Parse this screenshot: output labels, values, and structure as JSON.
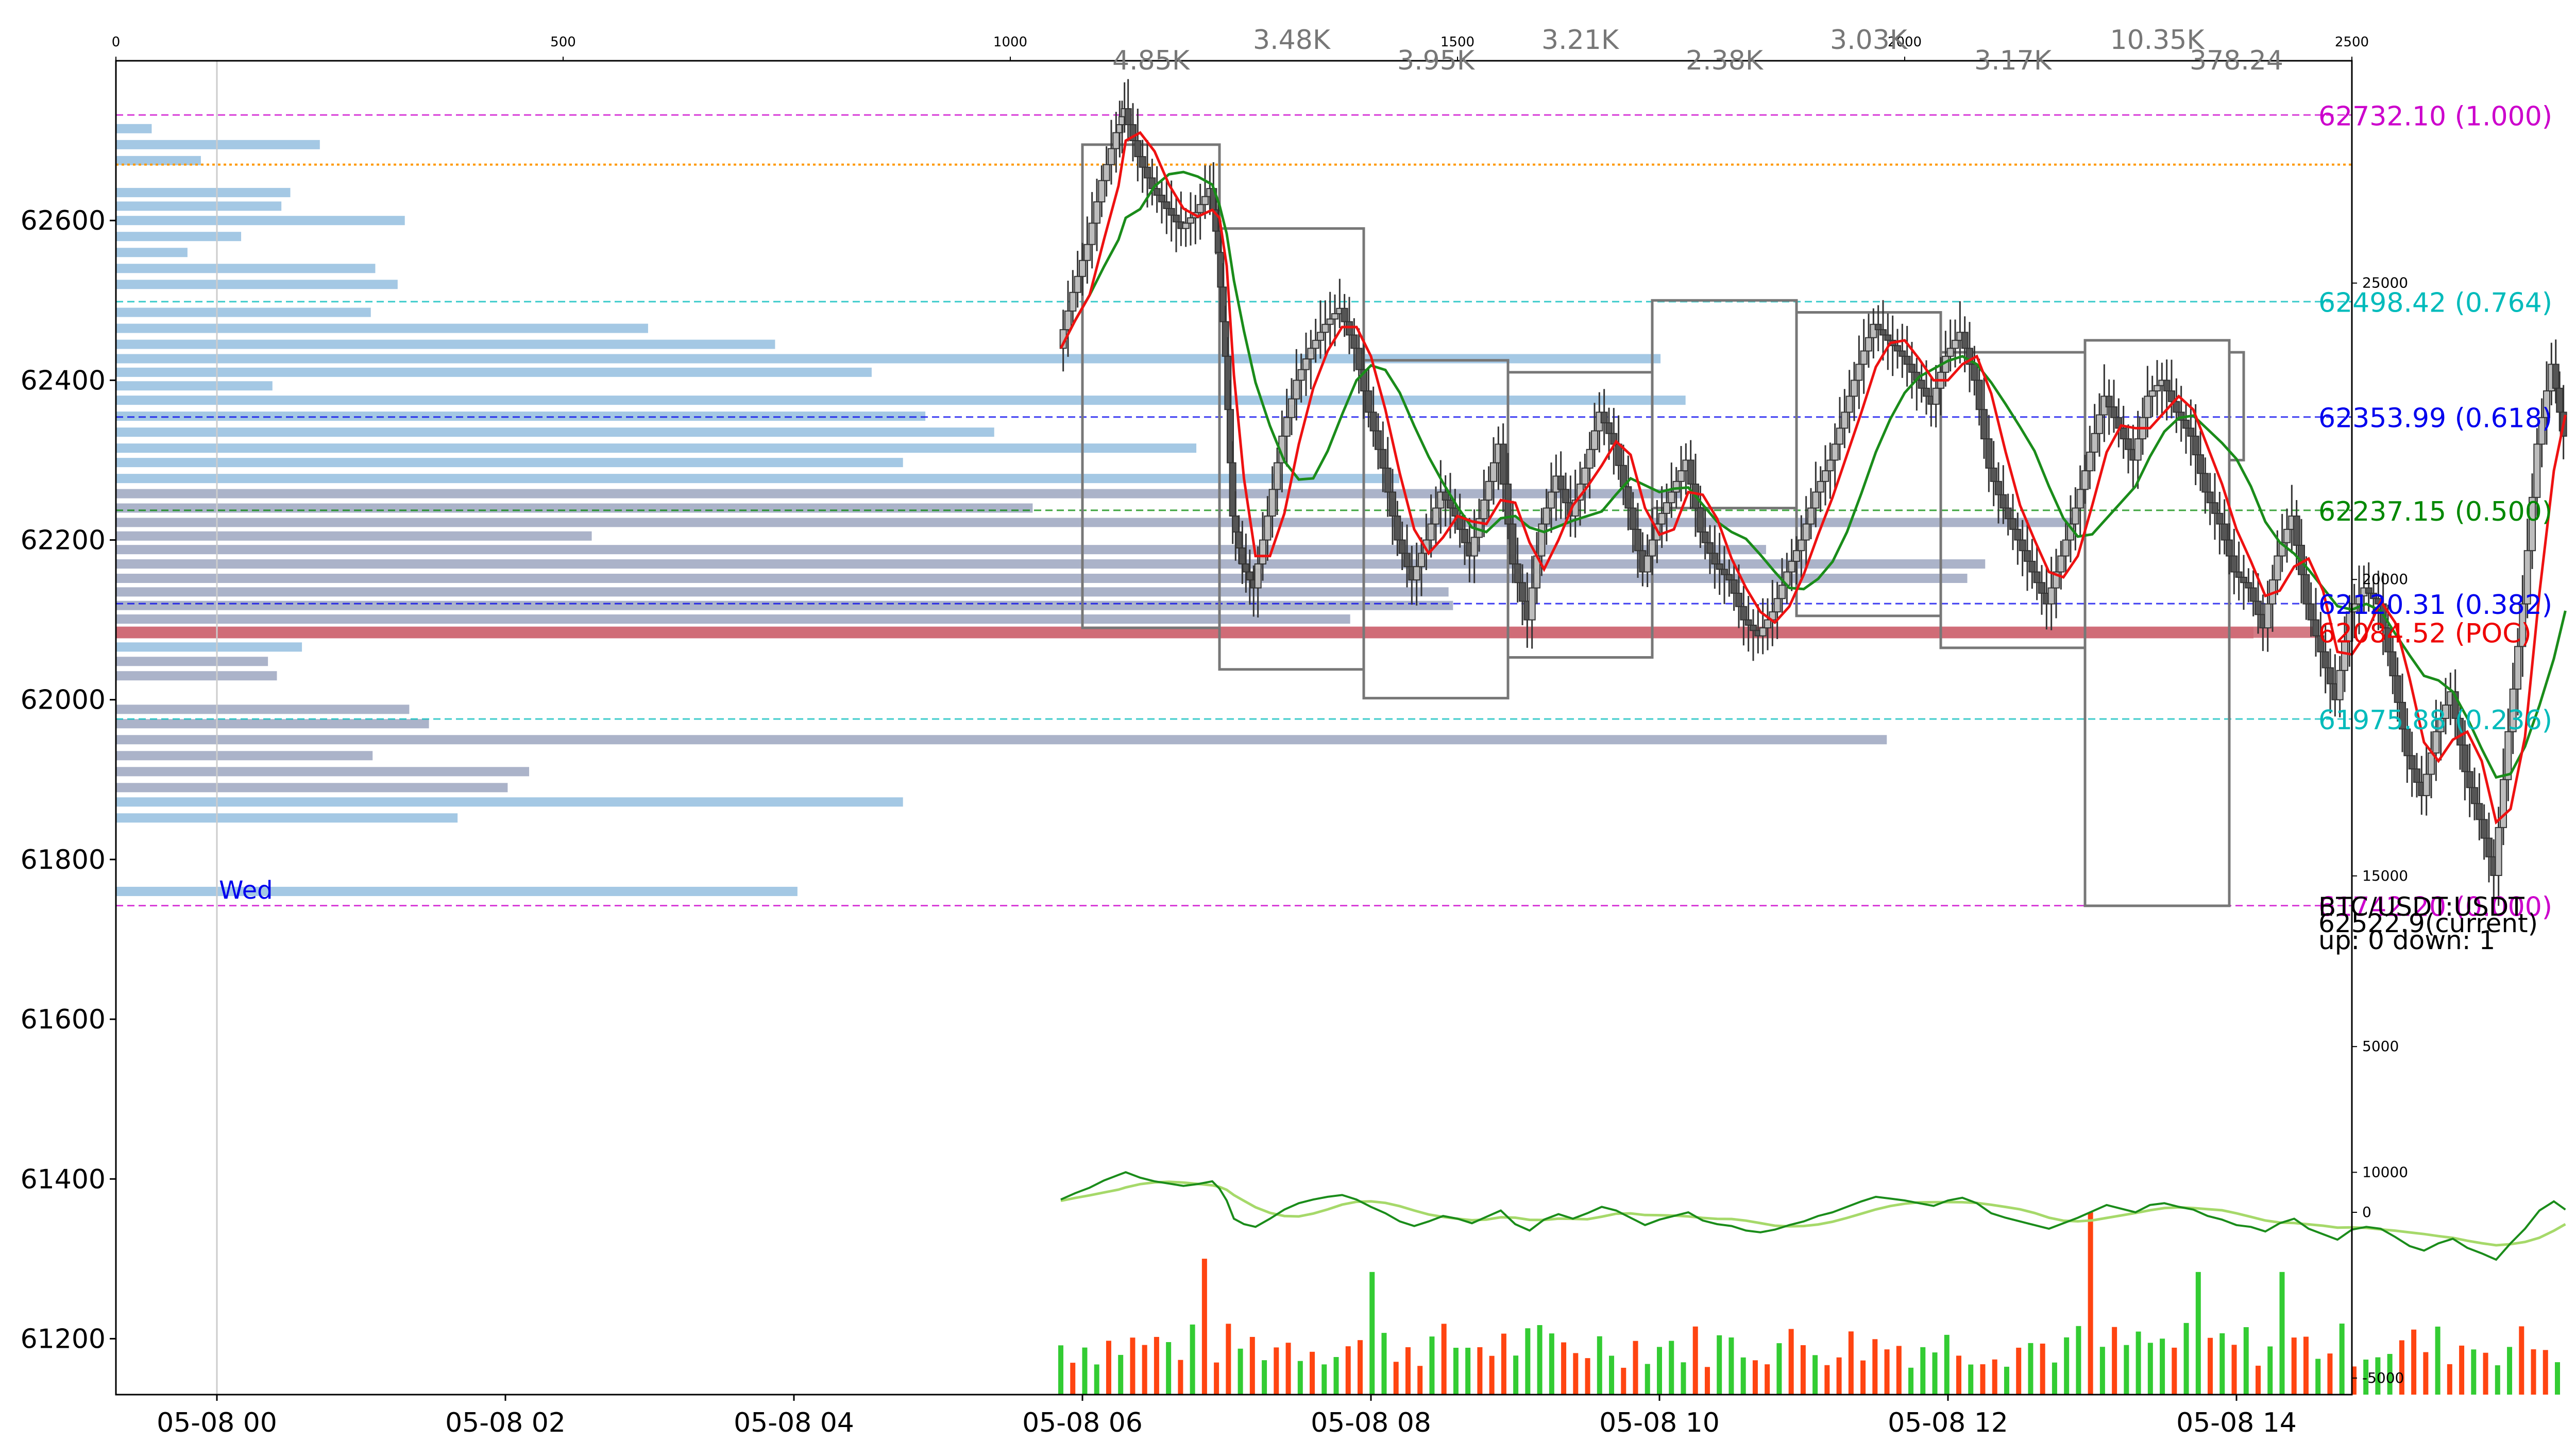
{
  "chart_data": {
    "type": "candlestick",
    "symbol_label": "BTC/USDT:USDT",
    "current_label": "62522.9(current)",
    "updown_label": "up: 0 down: 1",
    "day_label": "Wed",
    "x_ticks": [
      "05-08 00",
      "05-08 02",
      "05-08 04",
      "05-08 06",
      "05-08 08",
      "05-08 10",
      "05-08 12",
      "05-08 14"
    ],
    "x_range_hours": [
      -0.7,
      14.8
    ],
    "y_left": {
      "ticks": [
        61200,
        61400,
        61600,
        61800,
        62000,
        62200,
        62400,
        62600
      ],
      "range": [
        61130,
        62800
      ]
    },
    "top_axis": {
      "ticks": [
        0,
        500,
        1000,
        1500,
        2000,
        2500
      ],
      "range": [
        0,
        2500
      ]
    },
    "right_axis_upper": {
      "ticks": [
        10000,
        15000,
        20000,
        25000
      ],
      "range": [
        6250,
        28750
      ]
    },
    "right_axis_lower": {
      "ticks": [
        -5000,
        0,
        5000
      ],
      "range": [
        -5500,
        5500
      ]
    },
    "fib_levels": [
      {
        "price": 62732.1,
        "label": "62732.10 (1.000)",
        "color": "#cc00cc"
      },
      {
        "price": 62498.42,
        "label": "62498.42 (0.764)",
        "color": "#00bbbb"
      },
      {
        "price": 62353.99,
        "label": "62353.99 (0.618)",
        "color": "#0000ee"
      },
      {
        "price": 62237.15,
        "label": "62237.15 (0.500)",
        "color": "#008800"
      },
      {
        "price": 62120.31,
        "label": "62120.31 (0.382)",
        "color": "#0000ee"
      },
      {
        "price": 62084.52,
        "label": "62084.52 (POC)",
        "color": "#ee0000"
      },
      {
        "price": 61975.88,
        "label": "61975.88 (0.236)",
        "color": "#00bbbb"
      },
      {
        "price": 61742.2,
        "label": "61742.20 (0.000)",
        "color": "#cc00cc"
      }
    ],
    "orange_level": 62670,
    "poc_price": 62084.52,
    "volume_profile": [
      {
        "price": 62715,
        "vol": 40,
        "kind": "up"
      },
      {
        "price": 62695,
        "vol": 228,
        "kind": "up"
      },
      {
        "price": 62675,
        "vol": 95,
        "kind": "up"
      },
      {
        "price": 62635,
        "vol": 195,
        "kind": "up"
      },
      {
        "price": 62618,
        "vol": 185,
        "kind": "up"
      },
      {
        "price": 62600,
        "vol": 323,
        "kind": "up"
      },
      {
        "price": 62580,
        "vol": 140,
        "kind": "up"
      },
      {
        "price": 62560,
        "vol": 80,
        "kind": "up"
      },
      {
        "price": 62540,
        "vol": 290,
        "kind": "up"
      },
      {
        "price": 62520,
        "vol": 315,
        "kind": "up"
      },
      {
        "price": 62485,
        "vol": 285,
        "kind": "up"
      },
      {
        "price": 62465,
        "vol": 595,
        "kind": "up"
      },
      {
        "price": 62445,
        "vol": 737,
        "kind": "up"
      },
      {
        "price": 62427,
        "vol": 1727,
        "kind": "up"
      },
      {
        "price": 62410,
        "vol": 845,
        "kind": "up"
      },
      {
        "price": 62393,
        "vol": 175,
        "kind": "up"
      },
      {
        "price": 62375,
        "vol": 1755,
        "kind": "up"
      },
      {
        "price": 62355,
        "vol": 905,
        "kind": "up"
      },
      {
        "price": 62335,
        "vol": 982,
        "kind": "up"
      },
      {
        "price": 62315,
        "vol": 1208,
        "kind": "up"
      },
      {
        "price": 62297,
        "vol": 880,
        "kind": "up"
      },
      {
        "price": 62277,
        "vol": 1435,
        "kind": "up"
      },
      {
        "price": 62258,
        "vol": 1750,
        "kind": "mixed"
      },
      {
        "price": 62240,
        "vol": 1025,
        "kind": "down"
      },
      {
        "price": 62222,
        "vol": 2190,
        "kind": "down"
      },
      {
        "price": 62205,
        "vol": 532,
        "kind": "down"
      },
      {
        "price": 62188,
        "vol": 1845,
        "kind": "down"
      },
      {
        "price": 62170,
        "vol": 2090,
        "kind": "down"
      },
      {
        "price": 62152,
        "vol": 2070,
        "kind": "down"
      },
      {
        "price": 62135,
        "vol": 1490,
        "kind": "down"
      },
      {
        "price": 62118,
        "vol": 1495,
        "kind": "down"
      },
      {
        "price": 62101,
        "vol": 1380,
        "kind": "down"
      },
      {
        "price": 62084,
        "vol": 2390,
        "kind": "poc"
      },
      {
        "price": 62066,
        "vol": 208,
        "kind": "up"
      },
      {
        "price": 62048,
        "vol": 170,
        "kind": "down"
      },
      {
        "price": 62030,
        "vol": 180,
        "kind": "down"
      },
      {
        "price": 61988,
        "vol": 328,
        "kind": "down"
      },
      {
        "price": 61970,
        "vol": 350,
        "kind": "down"
      },
      {
        "price": 61950,
        "vol": 1980,
        "kind": "down"
      },
      {
        "price": 61930,
        "vol": 287,
        "kind": "down"
      },
      {
        "price": 61910,
        "vol": 462,
        "kind": "down"
      },
      {
        "price": 61890,
        "vol": 438,
        "kind": "down"
      },
      {
        "price": 61872,
        "vol": 880,
        "kind": "up"
      },
      {
        "price": 61852,
        "vol": 382,
        "kind": "up"
      },
      {
        "price": 61760,
        "vol": 762,
        "kind": "up"
      }
    ],
    "boxes": [
      {
        "start_h": 6.0,
        "end_h": 6.95,
        "high": 62695,
        "low": 62090,
        "label": "4.85K"
      },
      {
        "start_h": 6.95,
        "end_h": 7.95,
        "high": 62590,
        "low": 62038,
        "label": "3.48K"
      },
      {
        "start_h": 7.95,
        "end_h": 8.95,
        "high": 62425,
        "low": 62002,
        "label": "3.95K"
      },
      {
        "start_h": 8.95,
        "end_h": 9.95,
        "high": 62410,
        "low": 62053,
        "label": "3.21K"
      },
      {
        "start_h": 9.95,
        "end_h": 10.95,
        "high": 62500,
        "low": 62240,
        "label": "2.38K"
      },
      {
        "start_h": 10.95,
        "end_h": 11.95,
        "high": 62485,
        "low": 62105,
        "label": "3.03K"
      },
      {
        "start_h": 11.95,
        "end_h": 12.95,
        "high": 62435,
        "low": 62065,
        "label": "3.17K"
      },
      {
        "start_h": 12.95,
        "end_h": 13.95,
        "high": 62450,
        "low": 61742,
        "label": "10.35K"
      },
      {
        "start_h": 13.95,
        "end_h": 14.05,
        "high": 62435,
        "low": 62300,
        "label": "378.24"
      }
    ],
    "price_path": [
      [
        5.85,
        62440
      ],
      [
        5.95,
        62510
      ],
      [
        6.05,
        62570
      ],
      [
        6.15,
        62650
      ],
      [
        6.25,
        62710
      ],
      [
        6.3,
        62740
      ],
      [
        6.4,
        62680
      ],
      [
        6.5,
        62640
      ],
      [
        6.6,
        62615
      ],
      [
        6.7,
        62590
      ],
      [
        6.8,
        62610
      ],
      [
        6.9,
        62640
      ],
      [
        6.95,
        62560
      ],
      [
        7.0,
        62430
      ],
      [
        7.05,
        62230
      ],
      [
        7.12,
        62170
      ],
      [
        7.2,
        62140
      ],
      [
        7.3,
        62230
      ],
      [
        7.4,
        62330
      ],
      [
        7.5,
        62400
      ],
      [
        7.6,
        62440
      ],
      [
        7.7,
        62470
      ],
      [
        7.8,
        62490
      ],
      [
        7.9,
        62440
      ],
      [
        8.0,
        62360
      ],
      [
        8.1,
        62290
      ],
      [
        8.2,
        62200
      ],
      [
        8.3,
        62150
      ],
      [
        8.4,
        62200
      ],
      [
        8.5,
        62260
      ],
      [
        8.6,
        62230
      ],
      [
        8.7,
        62180
      ],
      [
        8.8,
        62250
      ],
      [
        8.9,
        62320
      ],
      [
        9.0,
        62170
      ],
      [
        9.1,
        62100
      ],
      [
        9.2,
        62220
      ],
      [
        9.3,
        62280
      ],
      [
        9.4,
        62230
      ],
      [
        9.5,
        62290
      ],
      [
        9.6,
        62360
      ],
      [
        9.7,
        62320
      ],
      [
        9.8,
        62240
      ],
      [
        9.9,
        62160
      ],
      [
        10.0,
        62220
      ],
      [
        10.1,
        62260
      ],
      [
        10.2,
        62300
      ],
      [
        10.3,
        62210
      ],
      [
        10.4,
        62170
      ],
      [
        10.5,
        62150
      ],
      [
        10.6,
        62100
      ],
      [
        10.7,
        62080
      ],
      [
        10.8,
        62110
      ],
      [
        10.9,
        62160
      ],
      [
        11.0,
        62200
      ],
      [
        11.1,
        62260
      ],
      [
        11.2,
        62300
      ],
      [
        11.3,
        62360
      ],
      [
        11.4,
        62420
      ],
      [
        11.5,
        62470
      ],
      [
        11.6,
        62450
      ],
      [
        11.7,
        62430
      ],
      [
        11.8,
        62400
      ],
      [
        11.9,
        62370
      ],
      [
        12.0,
        62430
      ],
      [
        12.1,
        62460
      ],
      [
        12.2,
        62400
      ],
      [
        12.3,
        62290
      ],
      [
        12.4,
        62240
      ],
      [
        12.5,
        62200
      ],
      [
        12.6,
        62160
      ],
      [
        12.7,
        62120
      ],
      [
        12.8,
        62180
      ],
      [
        12.9,
        62240
      ],
      [
        13.0,
        62310
      ],
      [
        13.1,
        62380
      ],
      [
        13.2,
        62340
      ],
      [
        13.3,
        62300
      ],
      [
        13.4,
        62380
      ],
      [
        13.5,
        62400
      ],
      [
        13.6,
        62360
      ],
      [
        13.7,
        62330
      ],
      [
        13.8,
        62260
      ],
      [
        13.9,
        62220
      ],
      [
        14.0,
        62160
      ],
      [
        14.1,
        62140
      ],
      [
        14.2,
        62090
      ],
      [
        14.3,
        62180
      ],
      [
        14.4,
        62230
      ],
      [
        14.5,
        62120
      ],
      [
        14.6,
        62060
      ],
      [
        14.7,
        62000
      ],
      [
        14.8,
        62110
      ],
      [
        14.9,
        62140
      ],
      [
        15.0,
        62120
      ],
      [
        15.1,
        62030
      ],
      [
        15.2,
        61930
      ],
      [
        15.3,
        61880
      ],
      [
        15.4,
        61960
      ],
      [
        15.5,
        62010
      ],
      [
        15.6,
        61910
      ],
      [
        15.7,
        61850
      ],
      [
        15.8,
        61780
      ],
      [
        15.9,
        61960
      ],
      [
        16.0,
        62120
      ],
      [
        16.1,
        62320
      ],
      [
        16.2,
        62420
      ],
      [
        16.28,
        62330
      ]
    ],
    "volume_bars_note": "approximate heights in right-lower axis units",
    "volume_spikes": [
      {
        "h": 6.85,
        "vol": 3600,
        "dir": "down"
      },
      {
        "h": 8.0,
        "vol": 3200,
        "dir": "up"
      },
      {
        "h": 13.0,
        "vol": 5000,
        "dir": "down"
      },
      {
        "h": 13.75,
        "vol": 3200,
        "dir": "up"
      },
      {
        "h": 14.3,
        "vol": 3200,
        "dir": "up"
      }
    ]
  }
}
